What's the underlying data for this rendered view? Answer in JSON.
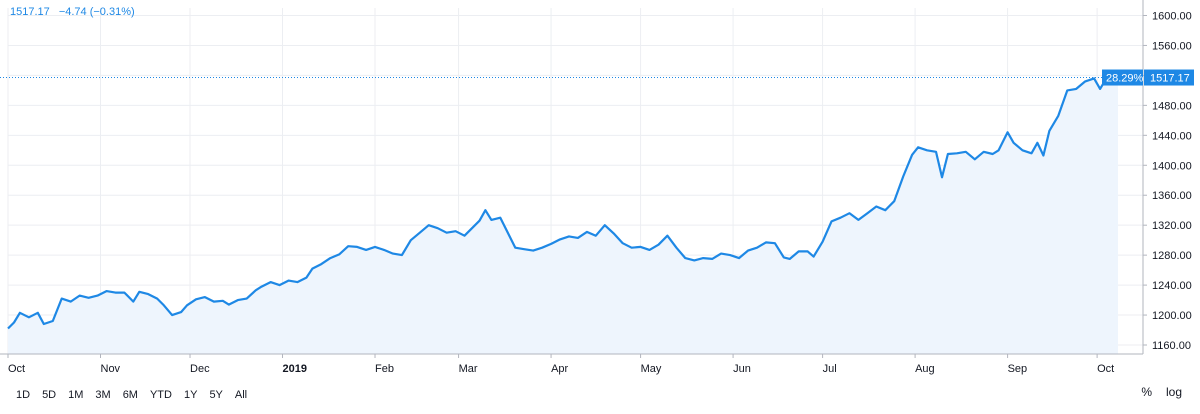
{
  "legend": {
    "last": "1517.17",
    "change": "−4.74 (−0.31%)"
  },
  "price_label": {
    "percent": "28.29%",
    "value": "1517.17"
  },
  "range_buttons": [
    "1D",
    "5D",
    "1M",
    "3M",
    "6M",
    "YTD",
    "1Y",
    "5Y",
    "All"
  ],
  "scale_controls": {
    "percent": "%",
    "log": "log"
  },
  "colors": {
    "line": "#1e88e5",
    "area": "#eef5fd",
    "grid": "#eceef2",
    "label_bg": "#1e88e5"
  },
  "chart_data": {
    "type": "area",
    "x_axis_labels": [
      {
        "label": "Oct",
        "date": "2018-10-01"
      },
      {
        "label": "Nov",
        "date": "2018-11-01"
      },
      {
        "label": "Dec",
        "date": "2018-12-01"
      },
      {
        "label": "2019",
        "date": "2019-01-01"
      },
      {
        "label": "Feb",
        "date": "2019-02-01"
      },
      {
        "label": "Mar",
        "date": "2019-03-01"
      },
      {
        "label": "Apr",
        "date": "2019-04-01"
      },
      {
        "label": "May",
        "date": "2019-05-01"
      },
      {
        "label": "Jun",
        "date": "2019-06-01"
      },
      {
        "label": "Jul",
        "date": "2019-07-01"
      },
      {
        "label": "Aug",
        "date": "2019-08-01"
      },
      {
        "label": "Sep",
        "date": "2019-09-01"
      },
      {
        "label": "Oct",
        "date": "2019-10-01"
      }
    ],
    "y_ticks": [
      1160,
      1200,
      1240,
      1280,
      1320,
      1360,
      1400,
      1440,
      1480,
      1520,
      1560,
      1600
    ],
    "xlim": [
      "2018-10-01",
      "2019-10-08"
    ],
    "ylim": [
      1148,
      1610
    ],
    "last_value": 1517.17,
    "grid": true,
    "series": [
      {
        "points": [
          [
            "2018-10-01",
            1182
          ],
          [
            "2018-10-03",
            1190
          ],
          [
            "2018-10-05",
            1203
          ],
          [
            "2018-10-08",
            1197
          ],
          [
            "2018-10-11",
            1203
          ],
          [
            "2018-10-13",
            1188
          ],
          [
            "2018-10-16",
            1192
          ],
          [
            "2018-10-19",
            1222
          ],
          [
            "2018-10-22",
            1218
          ],
          [
            "2018-10-25",
            1226
          ],
          [
            "2018-10-28",
            1223
          ],
          [
            "2018-10-31",
            1226
          ],
          [
            "2018-11-03",
            1232
          ],
          [
            "2018-11-06",
            1230
          ],
          [
            "2018-11-09",
            1230
          ],
          [
            "2018-11-12",
            1218
          ],
          [
            "2018-11-14",
            1231
          ],
          [
            "2018-11-17",
            1228
          ],
          [
            "2018-11-20",
            1222
          ],
          [
            "2018-11-22",
            1214
          ],
          [
            "2018-11-25",
            1200
          ],
          [
            "2018-11-28",
            1204
          ],
          [
            "2018-11-30",
            1213
          ],
          [
            "2018-12-03",
            1221
          ],
          [
            "2018-12-06",
            1224
          ],
          [
            "2018-12-09",
            1218
          ],
          [
            "2018-12-12",
            1219
          ],
          [
            "2018-12-14",
            1214
          ],
          [
            "2018-12-17",
            1220
          ],
          [
            "2018-12-20",
            1222
          ],
          [
            "2018-12-23",
            1233
          ],
          [
            "2018-12-25",
            1238
          ],
          [
            "2018-12-28",
            1244
          ],
          [
            "2018-12-31",
            1240
          ],
          [
            "2019-01-03",
            1246
          ],
          [
            "2019-01-06",
            1244
          ],
          [
            "2019-01-09",
            1250
          ],
          [
            "2019-01-11",
            1262
          ],
          [
            "2019-01-14",
            1268
          ],
          [
            "2019-01-17",
            1276
          ],
          [
            "2019-01-20",
            1281
          ],
          [
            "2019-01-23",
            1292
          ],
          [
            "2019-01-26",
            1291
          ],
          [
            "2019-01-29",
            1287
          ],
          [
            "2019-02-01",
            1291
          ],
          [
            "2019-02-04",
            1287
          ],
          [
            "2019-02-07",
            1282
          ],
          [
            "2019-02-10",
            1280
          ],
          [
            "2019-02-13",
            1300
          ],
          [
            "2019-02-16",
            1310
          ],
          [
            "2019-02-19",
            1320
          ],
          [
            "2019-02-22",
            1316
          ],
          [
            "2019-02-25",
            1310
          ],
          [
            "2019-02-28",
            1312
          ],
          [
            "2019-03-03",
            1306
          ],
          [
            "2019-03-06",
            1318
          ],
          [
            "2019-03-08",
            1326
          ],
          [
            "2019-03-10",
            1340
          ],
          [
            "2019-03-12",
            1327
          ],
          [
            "2019-03-15",
            1330
          ],
          [
            "2019-03-18",
            1306
          ],
          [
            "2019-03-20",
            1290
          ],
          [
            "2019-03-23",
            1288
          ],
          [
            "2019-03-26",
            1286
          ],
          [
            "2019-03-29",
            1290
          ],
          [
            "2019-04-01",
            1295
          ],
          [
            "2019-04-04",
            1301
          ],
          [
            "2019-04-07",
            1305
          ],
          [
            "2019-04-10",
            1303
          ],
          [
            "2019-04-13",
            1311
          ],
          [
            "2019-04-16",
            1306
          ],
          [
            "2019-04-19",
            1320
          ],
          [
            "2019-04-22",
            1309
          ],
          [
            "2019-04-25",
            1296
          ],
          [
            "2019-04-28",
            1290
          ],
          [
            "2019-05-01",
            1291
          ],
          [
            "2019-05-04",
            1287
          ],
          [
            "2019-05-07",
            1294
          ],
          [
            "2019-05-10",
            1306
          ],
          [
            "2019-05-13",
            1290
          ],
          [
            "2019-05-16",
            1276
          ],
          [
            "2019-05-19",
            1273
          ],
          [
            "2019-05-22",
            1276
          ],
          [
            "2019-05-25",
            1275
          ],
          [
            "2019-05-28",
            1282
          ],
          [
            "2019-05-31",
            1280
          ],
          [
            "2019-06-03",
            1276
          ],
          [
            "2019-06-06",
            1286
          ],
          [
            "2019-06-09",
            1290
          ],
          [
            "2019-06-12",
            1297
          ],
          [
            "2019-06-15",
            1296
          ],
          [
            "2019-06-18",
            1277
          ],
          [
            "2019-06-20",
            1275
          ],
          [
            "2019-06-23",
            1285
          ],
          [
            "2019-06-26",
            1285
          ],
          [
            "2019-06-28",
            1278
          ],
          [
            "2019-07-01",
            1298
          ],
          [
            "2019-07-04",
            1325
          ],
          [
            "2019-07-07",
            1330
          ],
          [
            "2019-07-10",
            1336
          ],
          [
            "2019-07-13",
            1327
          ],
          [
            "2019-07-16",
            1336
          ],
          [
            "2019-07-19",
            1345
          ],
          [
            "2019-07-22",
            1340
          ],
          [
            "2019-07-25",
            1352
          ],
          [
            "2019-07-28",
            1385
          ],
          [
            "2019-07-31",
            1414
          ],
          [
            "2019-08-02",
            1424
          ],
          [
            "2019-08-05",
            1420
          ],
          [
            "2019-08-08",
            1418
          ],
          [
            "2019-08-10",
            1384
          ],
          [
            "2019-08-12",
            1415
          ],
          [
            "2019-08-15",
            1416
          ],
          [
            "2019-08-18",
            1418
          ],
          [
            "2019-08-21",
            1408
          ],
          [
            "2019-08-24",
            1418
          ],
          [
            "2019-08-27",
            1415
          ],
          [
            "2019-08-29",
            1420
          ],
          [
            "2019-09-01",
            1444
          ],
          [
            "2019-09-03",
            1430
          ],
          [
            "2019-09-06",
            1420
          ],
          [
            "2019-09-09",
            1416
          ],
          [
            "2019-09-11",
            1430
          ],
          [
            "2019-09-13",
            1413
          ],
          [
            "2019-09-15",
            1446
          ],
          [
            "2019-09-18",
            1466
          ],
          [
            "2019-09-21",
            1500
          ],
          [
            "2019-09-24",
            1502
          ],
          [
            "2019-09-27",
            1512
          ],
          [
            "2019-09-30",
            1516
          ],
          [
            "2019-10-02",
            1502
          ],
          [
            "2019-10-05",
            1522
          ],
          [
            "2019-10-08",
            1517.17
          ]
        ]
      }
    ]
  }
}
